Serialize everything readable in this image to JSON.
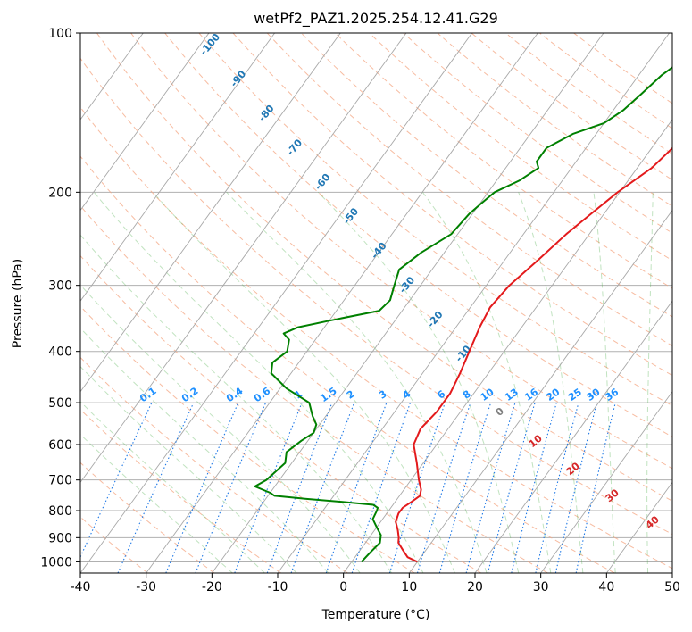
{
  "chart_data": {
    "type": "line",
    "title": "wetPf2_PAZ1.2025.254.12.41.G29",
    "xlabel": "Temperature (°C)",
    "ylabel": "Pressure (hPa)",
    "xlim": [
      -40,
      50
    ],
    "ylim": [
      1050,
      100
    ],
    "y_scale": "log",
    "grid": true,
    "x_ticks": [
      "-40",
      "-30",
      "-20",
      "-10",
      "0",
      "10",
      "20",
      "30",
      "40",
      "50"
    ],
    "y_ticks": [
      "100",
      "200",
      "300",
      "400",
      "500",
      "600",
      "700",
      "800",
      "900",
      "1000"
    ],
    "series": [
      {
        "color": "#e31a1c",
        "points": [
          [
            1000,
            10
          ],
          [
            980,
            8
          ],
          [
            950,
            6.5
          ],
          [
            920,
            5
          ],
          [
            900,
            4.5
          ],
          [
            870,
            3.5
          ],
          [
            840,
            2.3
          ],
          [
            810,
            1.8
          ],
          [
            790,
            1.8
          ],
          [
            770,
            2.5
          ],
          [
            750,
            3.1
          ],
          [
            730,
            2.6
          ],
          [
            700,
            1.2
          ],
          [
            650,
            -1
          ],
          [
            600,
            -3.5
          ],
          [
            560,
            -4.2
          ],
          [
            520,
            -3.6
          ],
          [
            480,
            -3.6
          ],
          [
            440,
            -4.3
          ],
          [
            400,
            -5.3
          ],
          [
            360,
            -6.4
          ],
          [
            330,
            -7
          ],
          [
            300,
            -6.5
          ],
          [
            270,
            -5
          ],
          [
            240,
            -3.5
          ],
          [
            220,
            -2
          ],
          [
            200,
            -0.3
          ],
          [
            180,
            2.2
          ],
          [
            160,
            3.5
          ],
          [
            140,
            5.5
          ],
          [
            120,
            8.5
          ],
          [
            110,
            11.5
          ],
          [
            100,
            13.5
          ]
        ]
      },
      {
        "color": "#008000",
        "points": [
          [
            1000,
            1.5
          ],
          [
            960,
            1.8
          ],
          [
            920,
            2.2
          ],
          [
            890,
            1.5
          ],
          [
            860,
            0
          ],
          [
            830,
            -1.5
          ],
          [
            800,
            -1.8
          ],
          [
            790,
            -2
          ],
          [
            780,
            -3
          ],
          [
            770,
            -8
          ],
          [
            760,
            -14
          ],
          [
            750,
            -19
          ],
          [
            740,
            -20
          ],
          [
            730,
            -21.5
          ],
          [
            720,
            -23
          ],
          [
            700,
            -22
          ],
          [
            650,
            -21
          ],
          [
            620,
            -22
          ],
          [
            590,
            -21
          ],
          [
            570,
            -20
          ],
          [
            550,
            -20.5
          ],
          [
            530,
            -22
          ],
          [
            500,
            -24
          ],
          [
            470,
            -29
          ],
          [
            440,
            -33
          ],
          [
            420,
            -34
          ],
          [
            400,
            -33
          ],
          [
            380,
            -34
          ],
          [
            370,
            -35.5
          ],
          [
            360,
            -34
          ],
          [
            350,
            -30
          ],
          [
            335,
            -23.5
          ],
          [
            320,
            -23
          ],
          [
            300,
            -24
          ],
          [
            280,
            -25
          ],
          [
            260,
            -23.5
          ],
          [
            240,
            -21
          ],
          [
            220,
            -20.5
          ],
          [
            210,
            -19.8
          ],
          [
            200,
            -19
          ],
          [
            190,
            -16.5
          ],
          [
            180,
            -15
          ],
          [
            175,
            -16
          ],
          [
            165,
            -16
          ],
          [
            155,
            -13.5
          ],
          [
            148,
            -10
          ],
          [
            140,
            -8.5
          ],
          [
            130,
            -7.5
          ],
          [
            120,
            -6.5
          ],
          [
            110,
            -4.5
          ],
          [
            100,
            -1
          ]
        ]
      }
    ],
    "dry_adiabat_labels": [
      "-100",
      "-90",
      "-80",
      "-70",
      "-60",
      "-50",
      "-40",
      "-30",
      "-20",
      "-10"
    ],
    "mixing_ratio_labels": [
      "0.1",
      "0.2",
      "0.4",
      "0.6",
      "1",
      "1.5",
      "2",
      "3",
      "4",
      "6",
      "8",
      "10",
      "13",
      "16",
      "20",
      "25",
      "30",
      "36"
    ],
    "moist_adiabat_labels": [
      "0",
      "10",
      "20",
      "30",
      "40"
    ],
    "colors": {
      "dry_adiabat_label": "#1f77b4",
      "mixing_ratio_label": "#1e90ff",
      "moist_adiabat_label": "#d62728",
      "moist_adiabat_label_first": "#7f7f7f"
    }
  }
}
